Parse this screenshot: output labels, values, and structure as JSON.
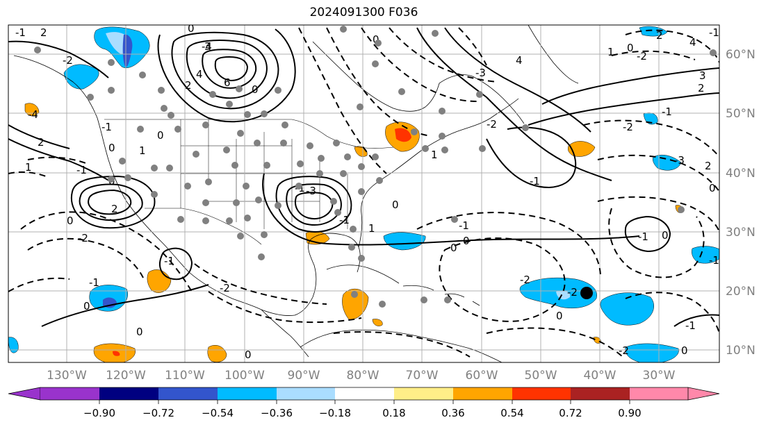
{
  "title": "2024091300 F036",
  "map": {
    "longitude_labels": [
      "130°W",
      "120°W",
      "110°W",
      "100°W",
      "90°W",
      "80°W",
      "70°W",
      "60°W",
      "50°W",
      "40°W",
      "30°W"
    ],
    "latitude_labels": [
      "60°N",
      "50°N",
      "40°N",
      "30°N",
      "20°N",
      "10°N"
    ],
    "contour_labels": [
      "-1",
      "2",
      "0",
      "-2",
      "-4",
      "-1",
      "2",
      "0",
      "-4",
      "3",
      "4",
      "6",
      "2",
      "0",
      "0",
      "1",
      "0",
      "1",
      "-1",
      "2",
      "0",
      "-1",
      "-2",
      "0",
      "-3",
      "-1",
      "1",
      "-2",
      "0",
      "2",
      "4",
      "-1",
      "0",
      "-2",
      "-3",
      "0",
      "1",
      "2",
      "-2",
      "-3",
      "2",
      "-1",
      "1",
      "3",
      "4",
      "-2",
      "-1",
      "-1",
      "0",
      "-1",
      "0",
      "-1",
      "0",
      "-2",
      "-2",
      "0",
      "-1",
      "0",
      "-2",
      "0",
      "-1",
      "-1",
      "0",
      "0"
    ],
    "colors": {
      "contour_line": "#000000",
      "grid_line": "#b0b0b0",
      "coast_line": "#000000",
      "station_dot": "#808080",
      "marker_dot": "#000000",
      "axis_label": "#808080"
    }
  },
  "colorbar": {
    "tick_labels": [
      "−0.90",
      "−0.72",
      "−0.54",
      "−0.36",
      "−0.18",
      "0.18",
      "0.36",
      "0.54",
      "0.72",
      "0.90"
    ],
    "colors": [
      "#9933cc",
      "#9933cc",
      "#000080",
      "#3355cc",
      "#00bbff",
      "#aaddff",
      "#ffffff",
      "#ffee88",
      "#ffa500",
      "#ff3300",
      "#aa2222",
      "#ff88aa",
      "#ff88aa"
    ]
  }
}
